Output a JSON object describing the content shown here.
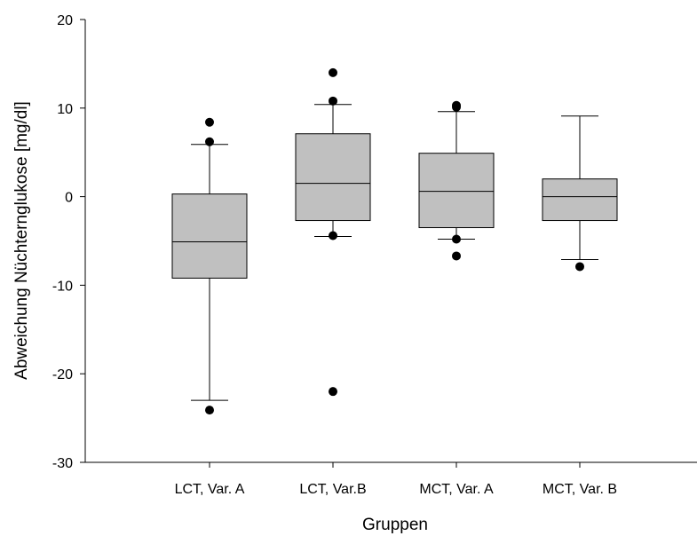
{
  "chart_data": {
    "type": "box",
    "title": "",
    "xlabel": "Gruppen",
    "ylabel": "Abweichung Nüchternglukose [mg/dl]",
    "ylim": [
      -30,
      20
    ],
    "yticks": [
      -30,
      -20,
      -10,
      0,
      10,
      20
    ],
    "grid": false,
    "legend": "none",
    "categories": [
      "LCT, Var. A",
      "LCT, Var.B",
      "MCT, Var. A",
      "MCT, Var. B"
    ],
    "boxes": [
      {
        "whisker_low": -23.0,
        "q1": -9.2,
        "median": -5.1,
        "q3": 0.3,
        "whisker_high": 5.9,
        "outliers": [
          -24.1,
          6.2,
          8.4
        ]
      },
      {
        "whisker_low": -4.5,
        "q1": -2.7,
        "median": 1.5,
        "q3": 7.1,
        "whisker_high": 10.4,
        "outliers": [
          -22.0,
          -4.4,
          10.8,
          14.0
        ]
      },
      {
        "whisker_low": -4.8,
        "q1": -3.5,
        "median": 0.6,
        "q3": 4.9,
        "whisker_high": 9.6,
        "outliers": [
          -6.7,
          -4.8,
          10.1,
          10.3
        ]
      },
      {
        "whisker_low": -7.1,
        "q1": -2.7,
        "median": 0.0,
        "q3": 2.0,
        "whisker_high": 9.1,
        "outliers": [
          -7.9
        ]
      }
    ],
    "colors": {
      "box_fill": "#c0c0c0",
      "stroke": "#000000",
      "outlier": "#000000"
    }
  }
}
